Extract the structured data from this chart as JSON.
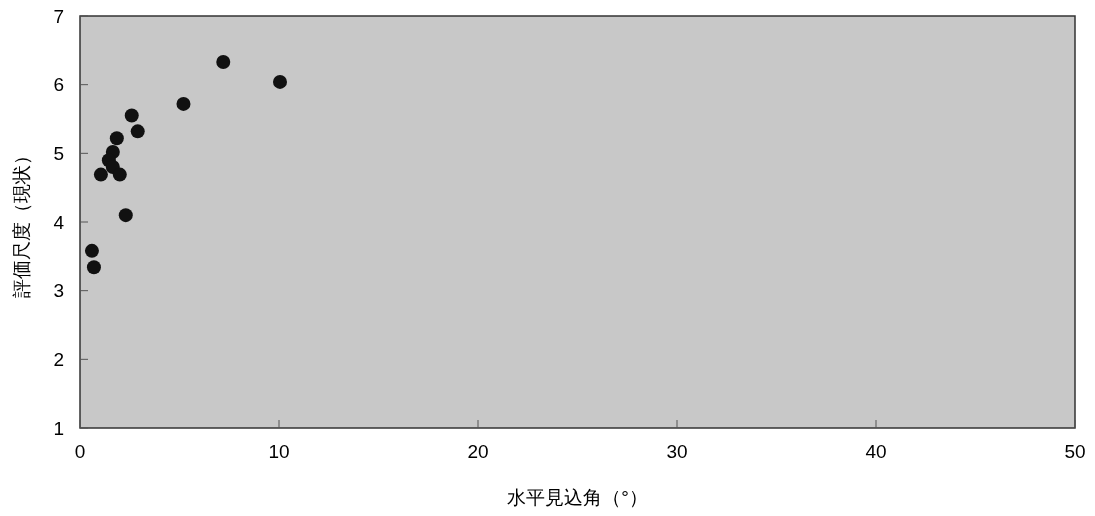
{
  "chart_data": {
    "type": "scatter",
    "xlabel": "水平見込角（°）",
    "ylabel": "評価尺度（現状）",
    "x": [
      7.2,
      10.05,
      5.2,
      2.6,
      2.9,
      1.85,
      1.65,
      1.45,
      1.65,
      1.05,
      2.0,
      2.3,
      0.6,
      0.7
    ],
    "series": [
      {
        "color": "#111111",
        "values": [
          6.33,
          6.04,
          5.72,
          5.55,
          5.32,
          5.22,
          5.02,
          4.9,
          4.8,
          4.69,
          4.69,
          4.1,
          3.58,
          3.34
        ]
      }
    ],
    "xlim": [
      0,
      50
    ],
    "xticks": [
      0,
      10,
      20,
      30,
      40,
      50
    ],
    "ylim": [
      1,
      7
    ],
    "yticks": [
      1,
      2,
      3,
      4,
      5,
      6,
      7
    ],
    "grid": false,
    "marker": "circle"
  }
}
